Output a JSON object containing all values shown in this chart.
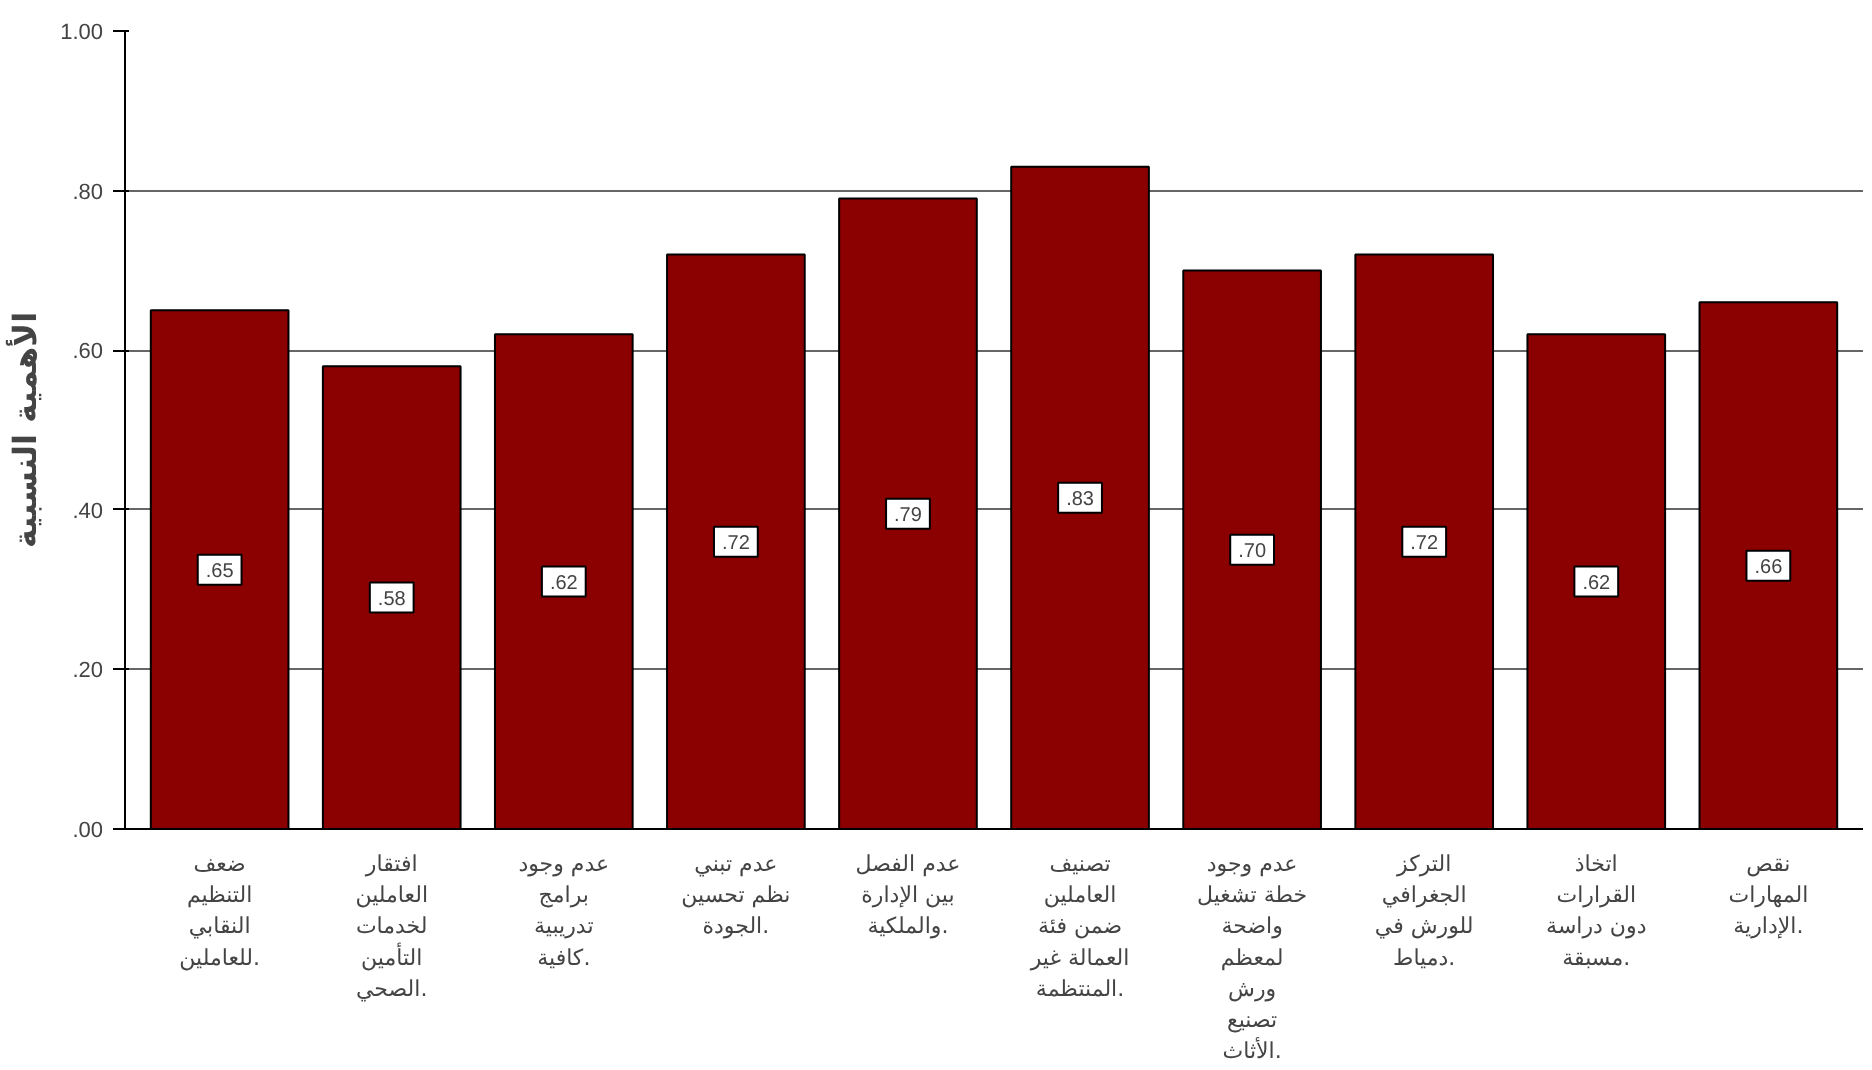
{
  "chart_data": {
    "type": "bar",
    "ylabel": "الأهمية النسبية",
    "categories": [
      "ضعف\nالتنظيم\nالنقابي\nللعاملين.",
      "افتقار\nالعاملين\nلخدمات\nالتأمين\nالصحي.",
      "عدم وجود\nبرامج\nتدريبية\nكافية.",
      "عدم تبني\nنظم تحسين\nالجودة.",
      "عدم الفصل\nبين الإدارة\nوالملكية.",
      "تصنيف\nالعاملين\nضمن فئة\nالعمالة غير\nالمنتظمة.",
      "عدم وجود\nخطة تشغيل\nواضحة\nلمعظم\nورش\nتصنيع\nالأثاث.",
      "التركز\nالجغرافي\nللورش في\nدمياط.",
      "اتخاذ\nالقرارات\nدون دراسة\nمسبقة.",
      "نقص\nالمهارات\nالإدارية."
    ],
    "values": [
      0.65,
      0.58,
      0.62,
      0.72,
      0.79,
      0.83,
      0.7,
      0.72,
      0.62,
      0.66
    ],
    "value_labels": [
      ".65",
      ".58",
      ".62",
      ".72",
      ".79",
      ".83",
      ".70",
      ".72",
      ".62",
      ".66"
    ],
    "color": "#8b0000",
    "ylim": [
      0,
      1.0
    ],
    "yticks": [
      {
        "value": 0,
        "label": ".00"
      },
      {
        "value": 0.2,
        "label": ".20"
      },
      {
        "value": 0.4,
        "label": ".40"
      },
      {
        "value": 0.6,
        "label": ".60"
      },
      {
        "value": 0.8,
        "label": ".80"
      },
      {
        "value": 1.0,
        "label": "1.00"
      }
    ],
    "grid": "y"
  }
}
